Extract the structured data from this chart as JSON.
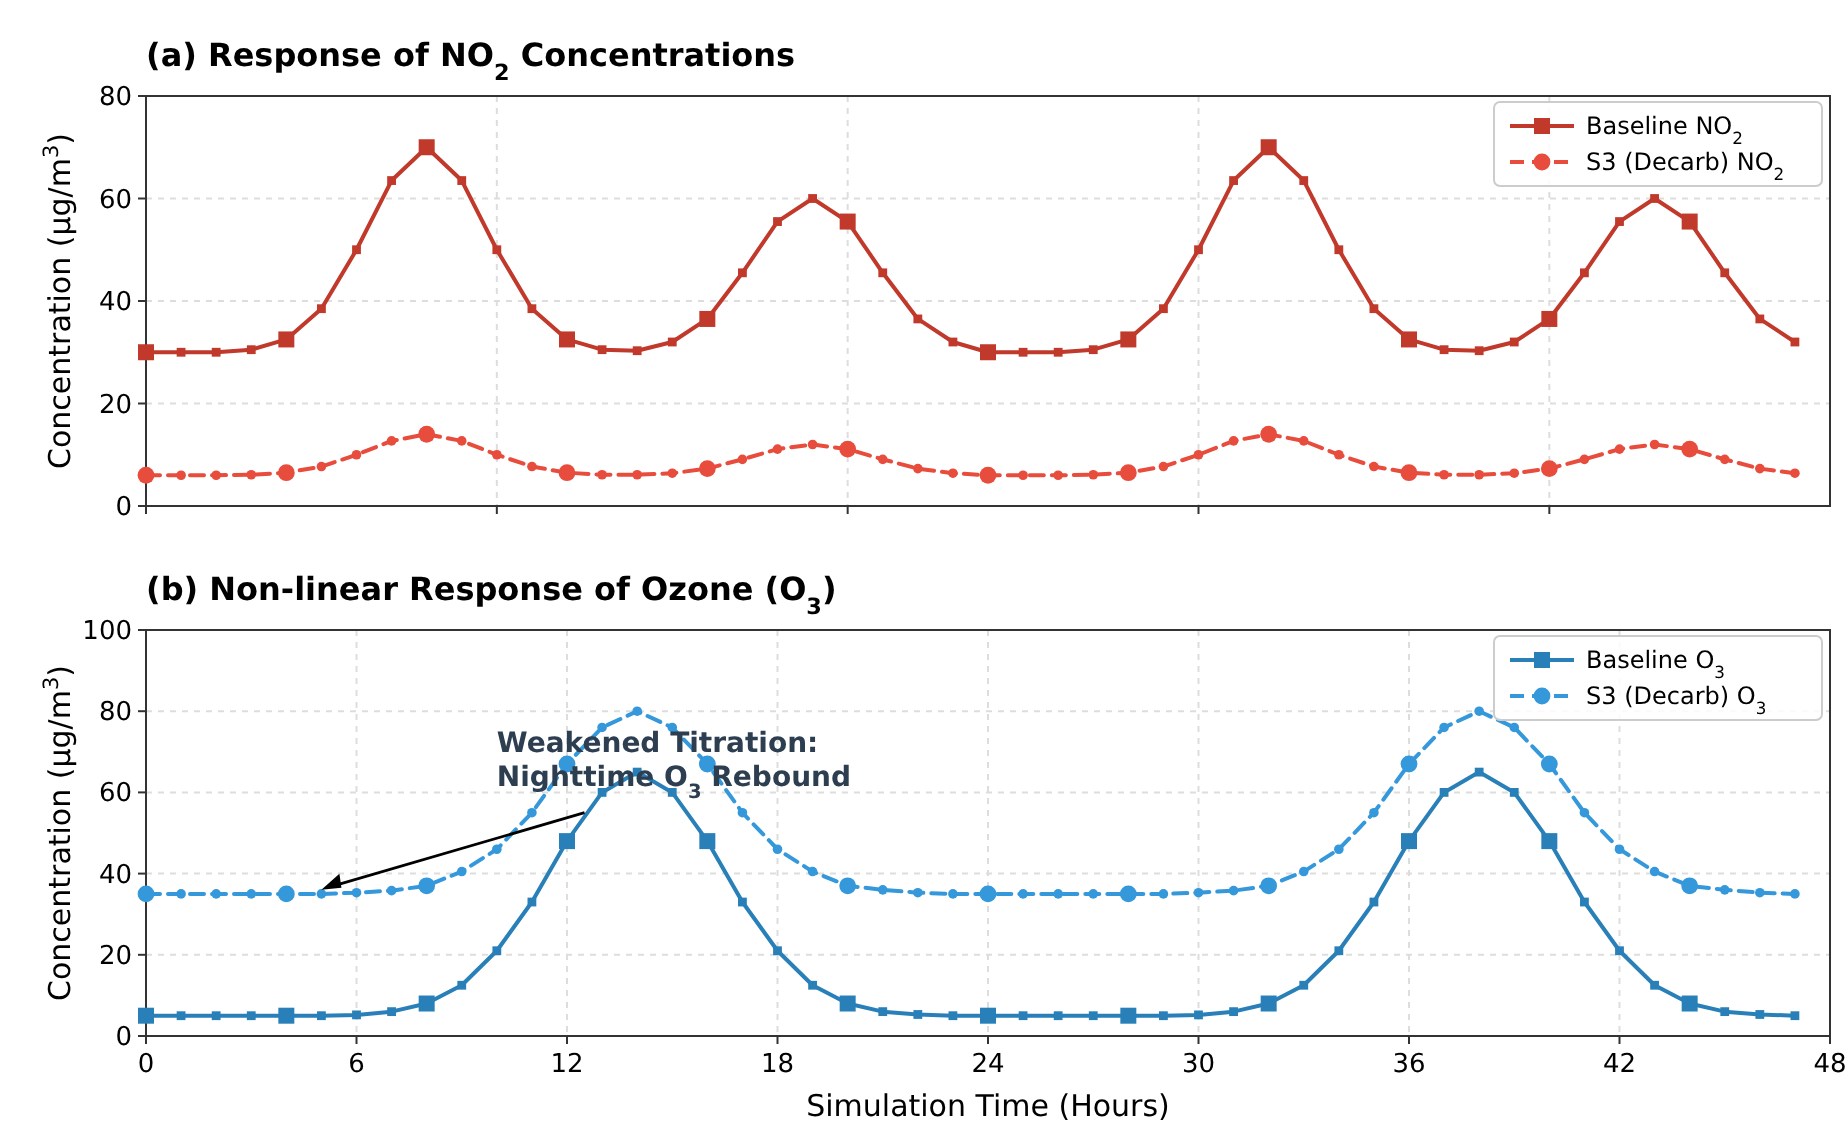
{
  "chart_data": [
    {
      "type": "line",
      "title": "(a) Response of NO$_{2}$ Concentrations",
      "ylabel": "Concentration (μg/m$^{3}$)",
      "x": [
        0,
        1,
        2,
        3,
        4,
        5,
        6,
        7,
        8,
        9,
        10,
        11,
        12,
        13,
        14,
        15,
        16,
        17,
        18,
        19,
        20,
        21,
        22,
        23,
        24,
        25,
        26,
        27,
        28,
        29,
        30,
        31,
        32,
        33,
        34,
        35,
        36,
        37,
        38,
        39,
        40,
        41,
        42,
        43,
        44,
        45,
        46,
        47
      ],
      "xlim": [
        0,
        48
      ],
      "xticks": [
        {
          "value": 0,
          "label": null
        },
        {
          "value": 10,
          "label": null
        },
        {
          "value": 20,
          "label": null
        },
        {
          "value": 30,
          "label": null
        },
        {
          "value": 40,
          "label": null
        }
      ],
      "ylim": [
        0,
        80
      ],
      "yticks": [
        0,
        20,
        40,
        60,
        80
      ],
      "tick_labels": "y",
      "grid": true,
      "legend": "top right",
      "series": [
        {
          "name": "Baseline NO$_{2}$",
          "color": "#c0392b",
          "marker": "square",
          "line_style": "solid",
          "values": [
            30,
            30,
            30,
            30.5,
            32.5,
            38.5,
            50,
            63.5,
            70,
            63.5,
            50,
            38.5,
            32.5,
            30.5,
            30.3,
            32,
            36.5,
            45.5,
            55.5,
            60,
            55.5,
            45.5,
            36.5,
            32,
            30,
            30,
            30,
            30.5,
            32.5,
            38.5,
            50,
            63.5,
            70,
            63.5,
            50,
            38.5,
            32.5,
            30.5,
            30.3,
            32,
            36.5,
            45.5,
            55.5,
            60,
            55.5,
            45.5,
            36.5,
            32
          ]
        },
        {
          "name": "S3 (Decarb) NO$_{2}$",
          "color": "#e74c3c",
          "marker": "circle",
          "line_style": "dashed",
          "values": [
            6,
            6,
            6,
            6.1,
            6.5,
            7.7,
            10,
            12.7,
            14,
            12.7,
            10,
            7.7,
            6.5,
            6.1,
            6.1,
            6.4,
            7.3,
            9.1,
            11.1,
            12,
            11.1,
            9.1,
            7.3,
            6.4,
            6,
            6,
            6,
            6.1,
            6.5,
            7.7,
            10,
            12.7,
            14,
            12.7,
            10,
            7.7,
            6.5,
            6.1,
            6.1,
            6.4,
            7.3,
            9.1,
            11.1,
            12,
            11.1,
            9.1,
            7.3,
            6.4
          ]
        }
      ]
    },
    {
      "type": "line",
      "title": "(b) Non-linear Response of Ozone (O$_{3}$)",
      "xlabel": "Simulation Time (Hours)",
      "ylabel": "Concentration (μg/m$^{3}$)",
      "x": [
        0,
        1,
        2,
        3,
        4,
        5,
        6,
        7,
        8,
        9,
        10,
        11,
        12,
        13,
        14,
        15,
        16,
        17,
        18,
        19,
        20,
        21,
        22,
        23,
        24,
        25,
        26,
        27,
        28,
        29,
        30,
        31,
        32,
        33,
        34,
        35,
        36,
        37,
        38,
        39,
        40,
        41,
        42,
        43,
        44,
        45,
        46,
        47
      ],
      "xlim": [
        0,
        48
      ],
      "xticks": [
        0,
        6,
        12,
        18,
        24,
        30,
        36,
        42,
        48
      ],
      "ylim": [
        0,
        100
      ],
      "yticks": [
        0,
        20,
        40,
        60,
        80,
        100
      ],
      "grid": true,
      "legend": "top right",
      "annotations": [
        {
          "text": "Weakened Titration:\nNighttime O$_{3}$ Rebound",
          "x": 5,
          "y": 36
        }
      ],
      "series": [
        {
          "name": "Baseline O$_{3}$",
          "color": "#2980b9",
          "marker": "square",
          "line_style": "solid",
          "values": [
            5,
            5,
            5,
            5,
            5,
            5,
            5.2,
            6,
            8,
            12.5,
            21,
            33,
            48,
            60,
            65,
            60,
            48,
            33,
            21,
            12.5,
            8,
            6,
            5.3,
            5,
            5,
            5,
            5,
            5,
            5,
            5,
            5.2,
            6,
            8,
            12.5,
            21,
            33,
            48,
            60,
            65,
            60,
            48,
            33,
            21,
            12.5,
            8,
            6,
            5.3,
            5
          ]
        },
        {
          "name": "S3 (Decarb) O$_{3}$",
          "color": "#3498db",
          "marker": "circle",
          "line_style": "dashed",
          "values": [
            35,
            35,
            35,
            35,
            35,
            35,
            35.3,
            35.8,
            37,
            40.5,
            46,
            55,
            67,
            76,
            80,
            76,
            67,
            55,
            46,
            40.5,
            37,
            36,
            35.3,
            35,
            35,
            35,
            35,
            35,
            35,
            35,
            35.3,
            35.8,
            37,
            40.5,
            46,
            55,
            67,
            76,
            80,
            76,
            67,
            55,
            46,
            40.5,
            37,
            36,
            35.3,
            35
          ]
        }
      ]
    }
  ]
}
